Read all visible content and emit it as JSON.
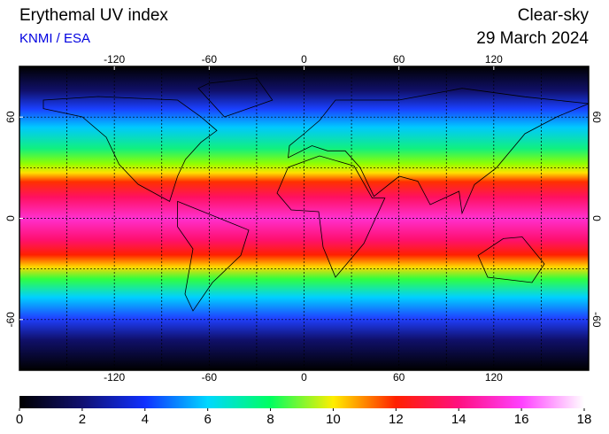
{
  "title": "Erythemal UV index",
  "subtitle": "KNMI / ESA",
  "condition": "Clear-sky",
  "date": "29 March 2024",
  "map": {
    "xlim": [
      -180,
      180
    ],
    "ylim": [
      -90,
      90
    ],
    "xticks": [
      -120,
      -60,
      0,
      60,
      120
    ],
    "yticks": [
      -60,
      0,
      60
    ],
    "grid_step": 30
  },
  "colorbar": {
    "range": [
      0,
      18
    ],
    "ticks": [
      0,
      2,
      4,
      6,
      8,
      10,
      12,
      14,
      16,
      18
    ],
    "colors": [
      "#000000",
      "#101070",
      "#1030ff",
      "#00d8ff",
      "#00ff60",
      "#ffee00",
      "#ff2000",
      "#ff1080",
      "#ff40ff",
      "#ffffff"
    ]
  }
}
